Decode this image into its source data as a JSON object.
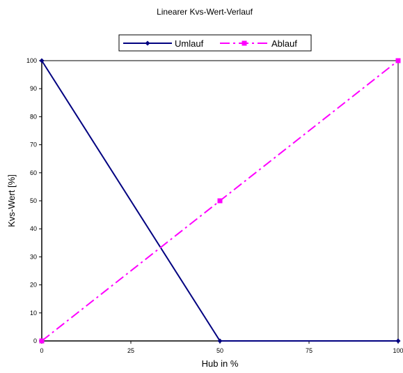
{
  "chart_data": {
    "type": "line",
    "title": "Linearer Kvs-Wert-Verlauf",
    "xlabel": "Hub in %",
    "ylabel": "Kvs-Wert [%]",
    "xlim": [
      0,
      100
    ],
    "ylim": [
      0,
      100
    ],
    "x_ticks": [
      "0",
      "25",
      "50",
      "75",
      "100"
    ],
    "y_ticks": [
      "0",
      "10",
      "20",
      "30",
      "40",
      "50",
      "60",
      "70",
      "80",
      "90",
      "100"
    ],
    "grid": false,
    "legend_position": "top-center",
    "series": [
      {
        "name": "Umlauf",
        "color": "#000080",
        "line_style": "solid",
        "marker": "diamond",
        "points": [
          [
            0,
            100
          ],
          [
            50,
            0
          ],
          [
            100,
            0
          ]
        ]
      },
      {
        "name": "Ablauf",
        "color": "#ff00ff",
        "line_style": "dash-dot",
        "marker": "square",
        "points": [
          [
            0,
            0
          ],
          [
            50,
            50
          ],
          [
            100,
            100
          ]
        ]
      }
    ]
  }
}
